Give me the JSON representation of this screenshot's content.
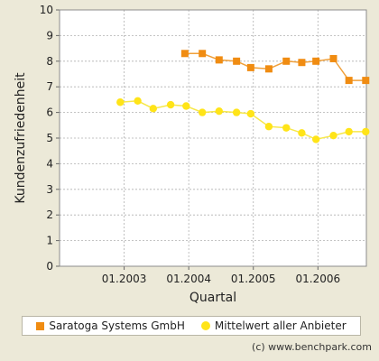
{
  "colors": {
    "saratoga": "#f08c12",
    "saratoga_line": "#f0a03a",
    "average": "#ffe418",
    "average_line": "#f7e84a",
    "plot_bg": "#ffffff",
    "grid": "#b0b0b0",
    "page_bg": "#ece9d8"
  },
  "footer": {
    "credit": "(c) www.benchpark.com"
  },
  "chart_data": {
    "type": "line",
    "title": "",
    "xlabel": "Quartal",
    "ylabel": "Kundenzufriedenheit",
    "ylim": [
      0,
      10
    ],
    "yticks": [
      0,
      1,
      2,
      3,
      4,
      5,
      6,
      7,
      8,
      9,
      10
    ],
    "xlim": [
      2002.0,
      2006.75
    ],
    "xticks": [
      {
        "value": 2003.0,
        "label": "01.2003"
      },
      {
        "value": 2004.0,
        "label": "01.2004"
      },
      {
        "value": 2005.0,
        "label": "01.2005"
      },
      {
        "value": 2006.0,
        "label": "01.2006"
      }
    ],
    "grid": true,
    "legend_position": "bottom",
    "series": [
      {
        "name": "Saratoga Systems GmbH",
        "marker": "square",
        "x": [
          2003.94,
          2004.21,
          2004.47,
          2004.74,
          2004.96,
          2005.24,
          2005.51,
          2005.75,
          2005.97,
          2006.24,
          2006.48,
          2006.74
        ],
        "y": [
          8.3,
          8.3,
          8.05,
          8.0,
          7.75,
          7.7,
          8.0,
          7.95,
          8.0,
          8.1,
          7.25,
          7.25
        ]
      },
      {
        "name": "Mittelwert aller Anbieter",
        "marker": "circle",
        "x": [
          2002.94,
          2003.21,
          2003.45,
          2003.72,
          2003.96,
          2004.21,
          2004.47,
          2004.74,
          2004.96,
          2005.24,
          2005.51,
          2005.75,
          2005.97,
          2006.24,
          2006.48,
          2006.74
        ],
        "y": [
          6.4,
          6.45,
          6.15,
          6.3,
          6.25,
          6.0,
          6.05,
          6.0,
          5.95,
          5.45,
          5.4,
          5.2,
          4.95,
          5.1,
          5.25,
          5.25
        ]
      }
    ]
  }
}
